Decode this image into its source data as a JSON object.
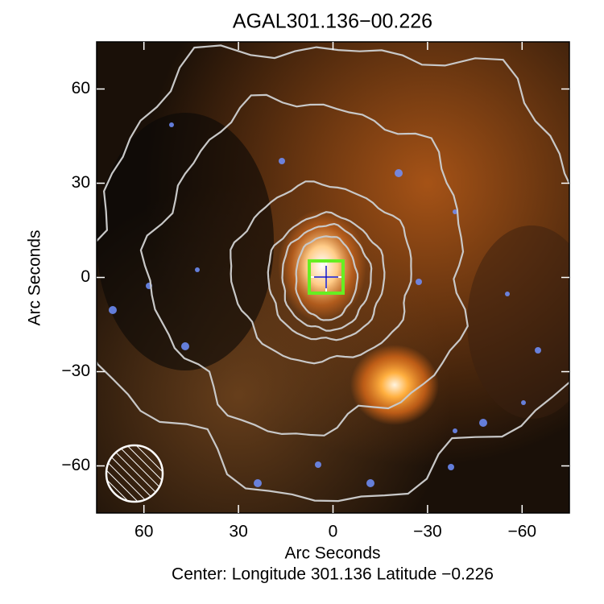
{
  "chart_data": {
    "type": "image",
    "title": "AGAL301.136−00.226",
    "xlabel": "Arc Seconds",
    "ylabel": "Arc Seconds",
    "caption": "Center:  Longitude 301.136 Latitude −0.226",
    "xlim": [
      75,
      -75
    ],
    "ylim": [
      -75,
      75
    ],
    "xticks": [
      60,
      30,
      0,
      {
        "value": -30,
        "label": "−30"
      },
      {
        "value": -60,
        "label": "−60"
      }
    ],
    "yticks": [
      {
        "value": -60,
        "label": "−60"
      },
      {
        "value": -30,
        "label": "−30"
      },
      0,
      30,
      60
    ]
  }
}
